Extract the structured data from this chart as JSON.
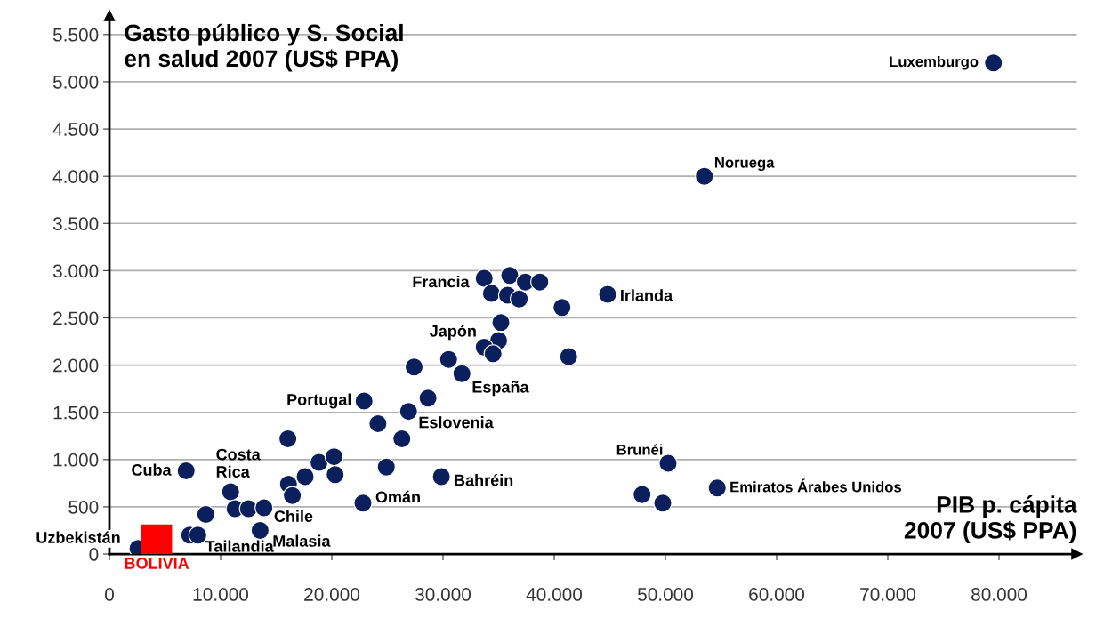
{
  "chart_data": {
    "type": "scatter",
    "ylabel": "Gasto público y S. Social\nen salud 2007 (US$ PPA)",
    "xlabel": "PIB p. cápita\n2007 (US$ PPA)",
    "xlim": [
      0,
      87000
    ],
    "ylim": [
      0,
      5700
    ],
    "xticks": [
      0,
      {
        "value": 10000,
        "label": "10.000"
      },
      {
        "value": 20000,
        "label": "20.000"
      },
      {
        "value": 30000,
        "label": "30.000"
      },
      {
        "value": 40000,
        "label": "40.000"
      },
      {
        "value": 50000,
        "label": "50.000"
      },
      {
        "value": 60000,
        "label": "60.000"
      },
      {
        "value": 70000,
        "label": "70.000"
      },
      {
        "value": 80000,
        "label": "80.000"
      }
    ],
    "yticks": [
      0,
      500,
      {
        "value": 1000,
        "label": "1.000"
      },
      {
        "value": 1500,
        "label": "1.500"
      },
      {
        "value": 2000,
        "label": "2.000"
      },
      {
        "value": 2500,
        "label": "2.500"
      },
      {
        "value": 3000,
        "label": "3.000"
      },
      {
        "value": 3500,
        "label": "3.500"
      },
      {
        "value": 4000,
        "label": "4.000"
      },
      {
        "value": 4500,
        "label": "4.500"
      },
      {
        "value": 5000,
        "label": "5.000"
      },
      {
        "value": 5500,
        "label": "5.500"
      }
    ],
    "grid": "y",
    "marker": "circle",
    "series": [
      {
        "color": "#0b1f5c",
        "x": [
          79500,
          53500,
          44800,
          33700,
          36000,
          34350,
          35800,
          36850,
          37400,
          38700,
          40700,
          null,
          35200,
          35000,
          33700,
          34500,
          41300,
          30500,
          27400,
          31700,
          28650,
          22900,
          26900,
          24150,
          16050,
          26300,
          18850,
          20200,
          20300,
          24900,
          17600,
          16100,
          16450,
          29850,
          22800,
          6900,
          10900,
          11300,
          12500,
          13900,
          8670,
          13550,
          7220,
          7950,
          2570,
          50240,
          47900,
          49760,
          54660
        ],
        "values": [
          5200,
          4000,
          2750,
          2920,
          2950,
          2760,
          2740,
          2700,
          2880,
          2880,
          2610,
          null,
          2450,
          2260,
          2190,
          2120,
          2090,
          2060,
          1980,
          1910,
          1650,
          1620,
          1510,
          1380,
          1220,
          1220,
          970,
          1030,
          840,
          920,
          820,
          740,
          620,
          820,
          540,
          880,
          660,
          480,
          480,
          490,
          420,
          250,
          200,
          200,
          60,
          960,
          630,
          540,
          700
        ]
      },
      {
        "name": "BOLIVIA",
        "color": "#ff0000",
        "marker": "square",
        "x": [
          4250
        ],
        "values": [
          150
        ]
      }
    ],
    "annotations": [
      {
        "text": "Luxemburgo",
        "x": 79500,
        "y": 5200
      },
      {
        "text": "Noruega",
        "x": 53500,
        "y": 4000
      },
      {
        "text": "Irlanda",
        "x": 44800,
        "y": 2750
      },
      {
        "text": "Francia",
        "x": 33700,
        "y": 2920
      },
      {
        "text": "Japón",
        "x": 33700,
        "y": 2190
      },
      {
        "text": "España",
        "x": 31700,
        "y": 1910
      },
      {
        "text": "Portugal",
        "x": 22900,
        "y": 1620
      },
      {
        "text": "Eslovenia",
        "x": 26900,
        "y": 1510
      },
      {
        "text": "Bahréin",
        "x": 29850,
        "y": 820
      },
      {
        "text": "Omán",
        "x": 22800,
        "y": 537
      },
      {
        "text": "Cuba",
        "x": 6900,
        "y": 876
      },
      {
        "text": "Costa\nRica",
        "x": 10900,
        "y": 660
      },
      {
        "text": "Chile",
        "x": 13900,
        "y": 490
      },
      {
        "text": "Malasia",
        "x": 13550,
        "y": 254
      },
      {
        "text": "Tailandia",
        "x": 7950,
        "y": 198
      },
      {
        "text": "Uzbekistán",
        "x": 2570,
        "y": 56
      },
      {
        "text": "Brunéi",
        "x": 50240,
        "y": 960
      },
      {
        "text": "Emiratos Árabes Unidos",
        "x": 54660,
        "y": 697
      }
    ]
  }
}
